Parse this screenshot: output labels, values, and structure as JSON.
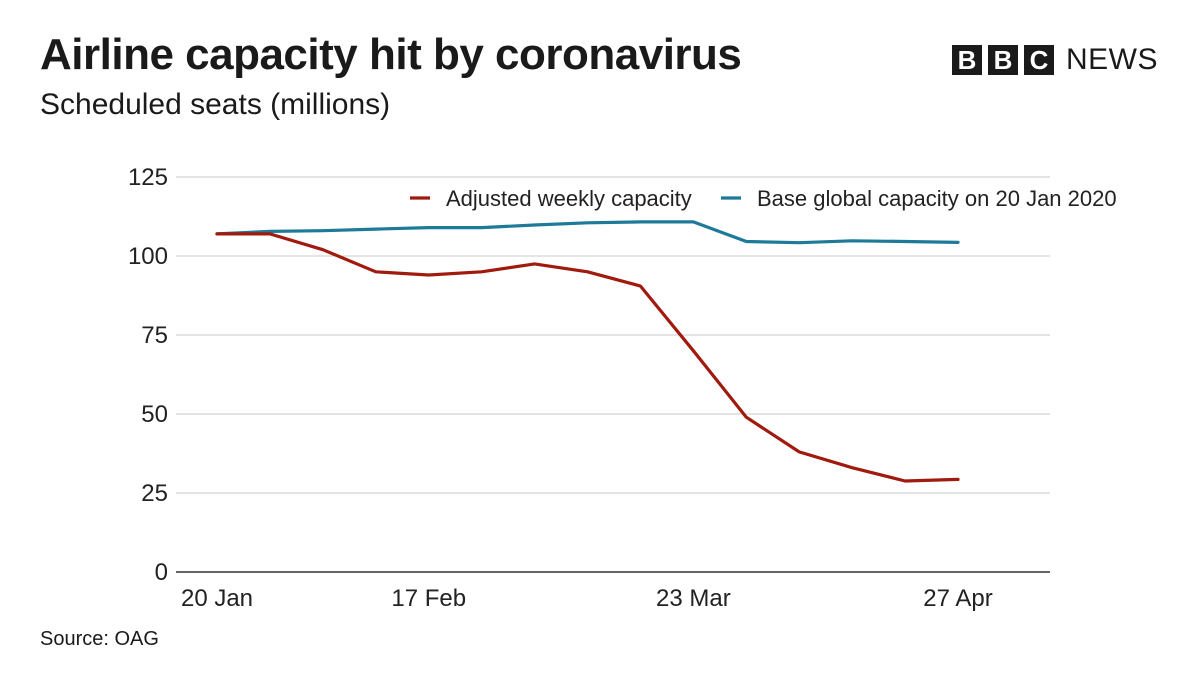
{
  "header": {
    "title": "Airline capacity hit by coronavirus",
    "subtitle": "Scheduled seats (millions)",
    "logo_letters": [
      "B",
      "B",
      "C"
    ],
    "logo_word": "NEWS"
  },
  "footer": {
    "source": "Source: OAG"
  },
  "chart_data": {
    "type": "line",
    "title": "Airline capacity hit by coronavirus",
    "subtitle": "Scheduled seats (millions)",
    "ylim": [
      0,
      125
    ],
    "yticks": [
      0,
      25,
      50,
      75,
      100,
      125
    ],
    "grid": true,
    "legend_position": "top-right",
    "x": [
      "20 Jan",
      "27 Jan",
      "3 Feb",
      "10 Feb",
      "17 Feb",
      "24 Feb",
      "2 Mar",
      "9 Mar",
      "16 Mar",
      "23 Mar",
      "30 Mar",
      "6 Apr",
      "13 Apr",
      "20 Apr",
      "27 Apr"
    ],
    "xtick_labels": [
      "20 Jan",
      "17 Feb",
      "23 Mar",
      "27 Apr"
    ],
    "series": [
      {
        "name": "Adjusted weekly capacity",
        "color": "#a01b0e",
        "values": [
          107,
          107,
          102,
          95,
          94,
          95,
          97.5,
          95,
          90.5,
          70,
          49,
          38,
          33,
          28.8,
          29.3
        ]
      },
      {
        "name": "Base global capacity on 20 Jan 2020",
        "color": "#1e7a99",
        "values": [
          107,
          107.8,
          108,
          108.5,
          109,
          109,
          109.8,
          110.5,
          110.8,
          110.8,
          104.6,
          104.2,
          104.8,
          104.6,
          104.3
        ]
      }
    ]
  }
}
